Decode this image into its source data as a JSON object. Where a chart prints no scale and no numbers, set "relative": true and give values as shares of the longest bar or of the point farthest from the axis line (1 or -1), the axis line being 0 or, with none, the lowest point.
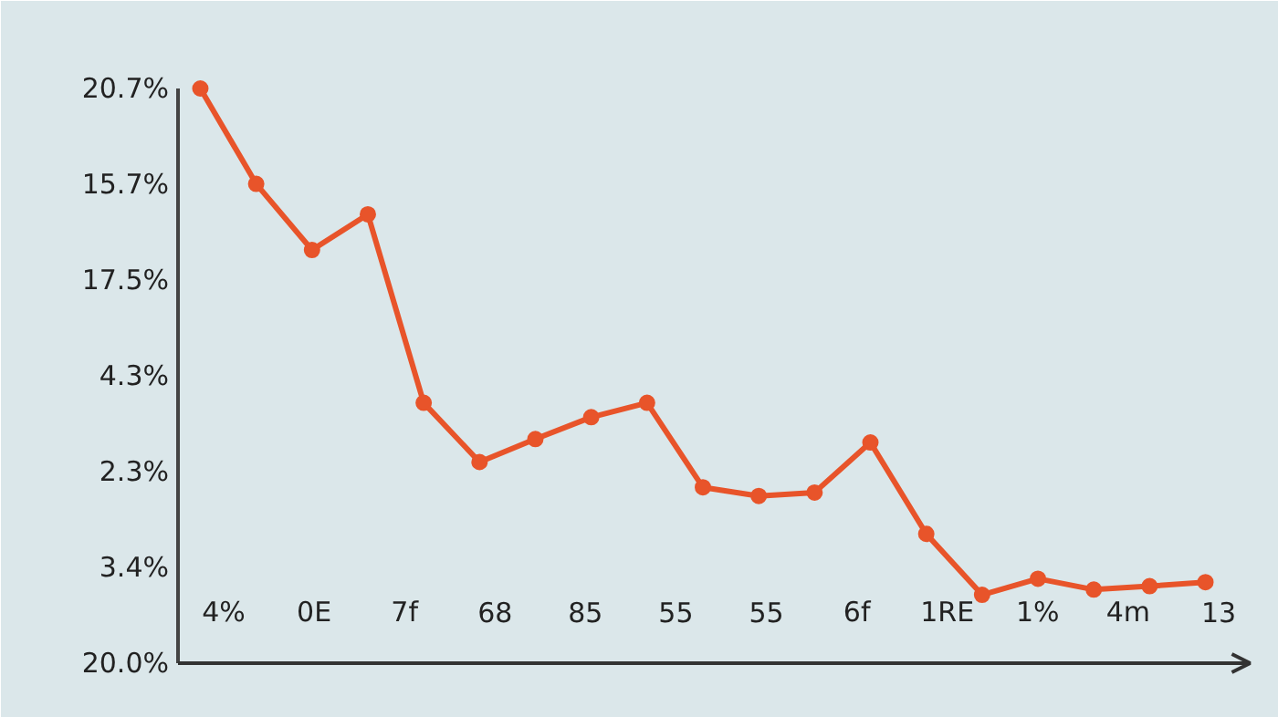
{
  "chart_data": {
    "type": "line",
    "relative": true,
    "categories": [
      null,
      null,
      null,
      null,
      null,
      null,
      null,
      null,
      null,
      null,
      null,
      null,
      null,
      null,
      null,
      null,
      null,
      null,
      null
    ],
    "series": [
      {
        "color": "#e8542a",
        "values": [
          1.0,
          0.834,
          0.719,
          0.781,
          0.453,
          0.35,
          0.39,
          0.428,
          0.453,
          0.306,
          0.291,
          0.297,
          0.384,
          0.225,
          0.119,
          0.147,
          0.128,
          0.134,
          0.141
        ]
      }
    ],
    "marker": "circle",
    "line_style": "solid",
    "grid": false,
    "annotations": [
      "20.7%",
      "15.7%",
      "17.5%",
      "4.3%",
      "2.3%",
      "3.4%",
      "20.0%",
      "4%",
      "0E",
      "7f",
      "68",
      "85",
      "55",
      "55",
      "6f",
      "1RE",
      "1%",
      "4m",
      "13"
    ]
  }
}
